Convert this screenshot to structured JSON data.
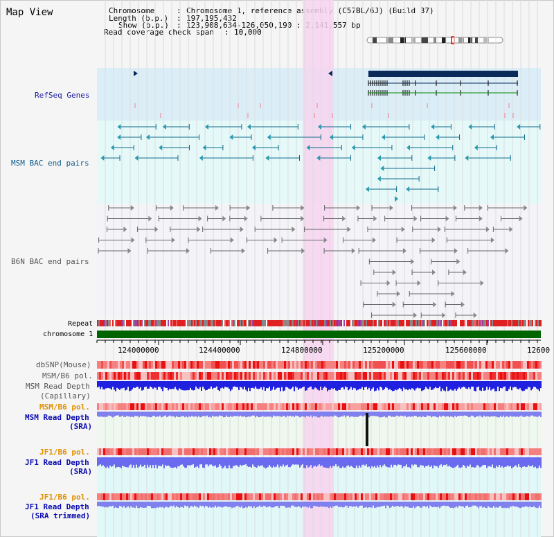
{
  "title": "Map View",
  "info": {
    "chromosome_label": "Chromosome",
    "chromosome_value": "Chromosome 1, reference assembly (C57BL/6J) (Build 37)",
    "length_label": "Length (b.p.)",
    "length_value": "197,195,432",
    "show_label": "Show (b.p.)",
    "show_value": "123,908,634-126,050,190 : 2,141,557 bp",
    "coverage_label": "Read coverage check span",
    "coverage_value": "10,000"
  },
  "tracks": {
    "refseq": "RefSeq Genes",
    "msm_bac": "MSM BAC end pairs",
    "b6n_bac": "B6N BAC end pairs",
    "repeat": "Repeat",
    "chromosome": "chromosome 1",
    "dbsnp": "dbSNP(Mouse)",
    "msm_b6_pol_1": "MSM/B6 pol.",
    "msm_read_depth_cap_1": "MSM Read Depth",
    "msm_read_depth_cap_2": "(Capillary)",
    "msm_b6_pol_2": "MSM/B6 pol.",
    "msm_read_depth_sra_1": "MSM Read Depth",
    "msm_read_depth_sra_2": "(SRA)",
    "jf1_b6_pol_1": "JF1/B6 pol.",
    "jf1_read_depth_1": "JF1 Read Depth",
    "jf1_read_depth_2": "(SRA)",
    "jf1_b6_pol_2": "JF1/B6 pol.",
    "jf1_trim_1": "JF1 Read Depth",
    "jf1_trim_2": "(SRA trimmed)"
  },
  "ruler": {
    "ticks": [
      "124000000",
      "124400000",
      "124800000",
      "125200000",
      "125600000",
      "12600"
    ]
  },
  "colors": {
    "refseq_bg": "#dbeef8",
    "bac_bg": "#e6f9f9",
    "b6n_bg": "#f4f4f8",
    "highlight": "#f7d4f0",
    "chromosome": "#006400",
    "depth_blue": "#2020e0",
    "depth_light": "#8080ee"
  }
}
